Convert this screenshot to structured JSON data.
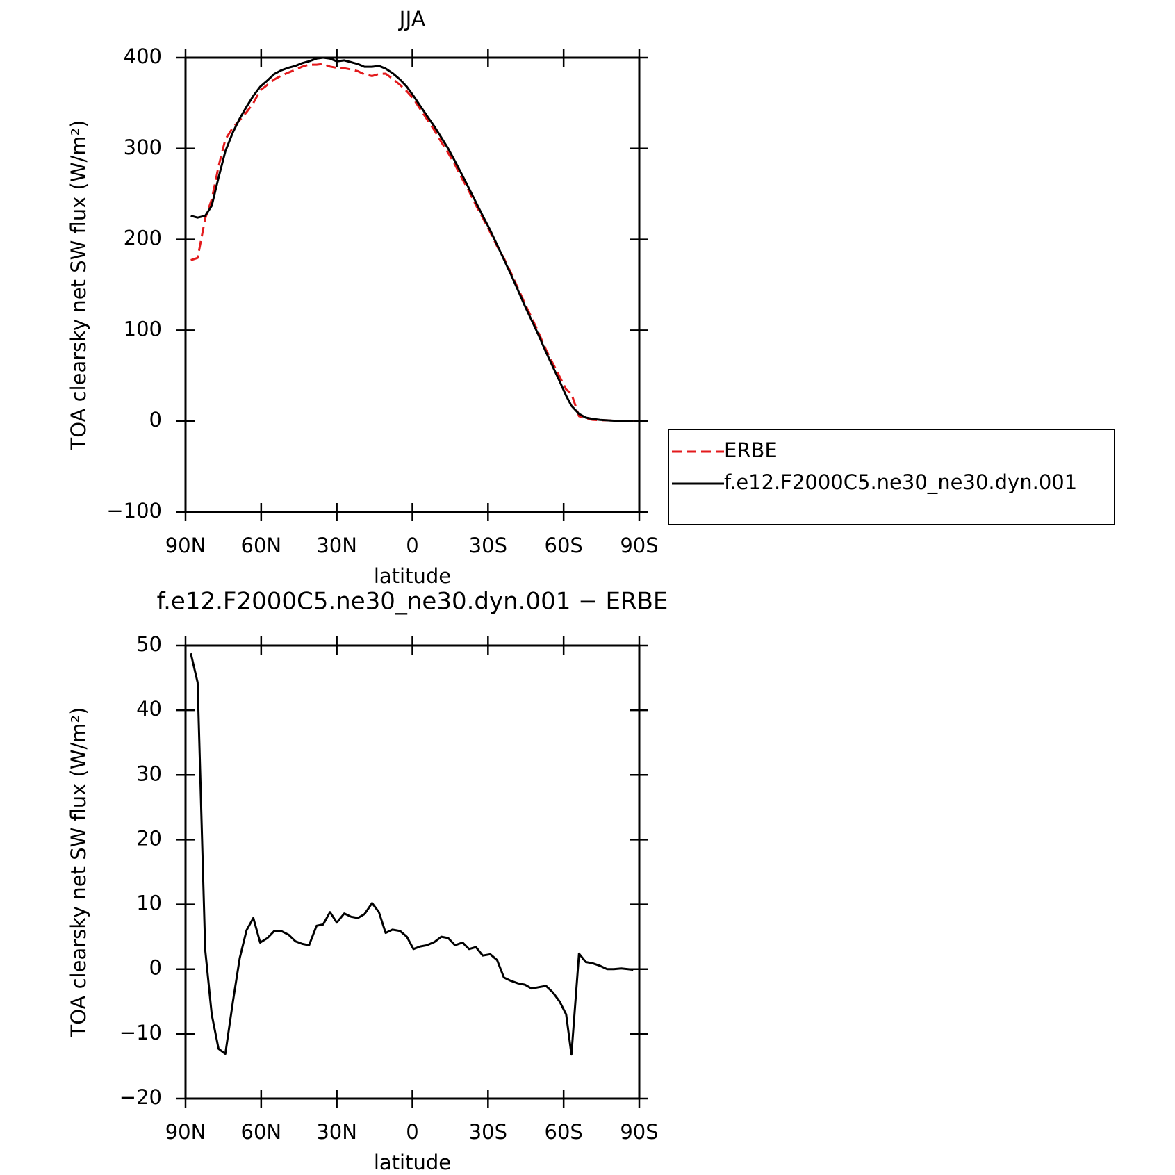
{
  "chart_data": [
    {
      "type": "line",
      "title": "JJA",
      "xlabel": "latitude",
      "ylabel": "TOA clearsky net SW flux (W/m²)",
      "x": [
        87.9,
        85.2,
        82.2,
        79.6,
        76.9,
        74.2,
        71.2,
        68.5,
        65.8,
        63.1,
        60.4,
        57.5,
        54.8,
        52.1,
        49.1,
        46.4,
        43.7,
        41,
        38,
        35.4,
        32.7,
        30,
        27,
        24.3,
        21.6,
        19,
        16,
        13.3,
        10.6,
        7.9,
        4.9,
        2.2,
        -0.4,
        -3.1,
        -5.8,
        -8.8,
        -11.5,
        -14.2,
        -16.9,
        -19.9,
        -22.5,
        -25.2,
        -27.9,
        -30.9,
        -33.6,
        -36.3,
        -39,
        -41.9,
        -44.6,
        -47.3,
        -50,
        -53,
        -55.7,
        -58.4,
        -61,
        -63.1,
        -66.1,
        -68.8,
        -71.5,
        -74.5,
        -77.2,
        -79.9,
        -82.8,
        -85.5,
        -87.6
      ],
      "series": [
        {
          "name": "ERBE",
          "color": "#e31a1c",
          "style": "dashed",
          "values": [
            177.2,
            179.7,
            223,
            244,
            280.3,
            310.1,
            323,
            331.3,
            340,
            350.1,
            363.9,
            370.2,
            376.1,
            380.1,
            383.7,
            386.7,
            390.1,
            392.3,
            392.3,
            393.1,
            390.2,
            388.8,
            388.4,
            386.9,
            385.1,
            381.5,
            379.8,
            382.2,
            382.4,
            376.9,
            370.1,
            363,
            354.9,
            343.5,
            332.3,
            319.8,
            307,
            295.2,
            282.3,
            265.9,
            252.9,
            237.6,
            223.9,
            207.7,
            192.6,
            179.3,
            163.8,
            146.2,
            129.4,
            114,
            97.8,
            78.6,
            63.6,
            49,
            35,
            30.2,
            5.6,
            2.9,
            1.6,
            1,
            1,
            0.5,
            0.2,
            0.2,
            0.3
          ]
        },
        {
          "name": "f.e12.F2000C5.ne30_ne30.dyn.001",
          "color": "#000000",
          "style": "solid",
          "values": [
            226,
            224,
            226,
            237,
            268,
            297,
            318,
            333,
            346,
            358,
            368,
            375,
            382,
            386,
            389,
            391,
            394,
            396,
            399,
            400,
            399,
            396,
            397,
            395,
            393,
            390,
            390,
            391,
            388,
            383,
            376,
            368,
            358,
            347,
            336,
            324,
            312,
            300,
            286,
            270,
            256,
            241,
            226,
            210,
            194,
            178,
            162,
            144,
            127,
            111,
            95,
            76,
            60,
            44,
            28,
            17,
            8,
            4,
            2.5,
            1.5,
            1,
            0.5,
            0.3,
            0.2,
            0.2
          ]
        }
      ],
      "xlim": [
        90,
        -90
      ],
      "xticks": [
        {
          "value": 90,
          "label": "90N"
        },
        {
          "value": 60,
          "label": "60N"
        },
        {
          "value": 30,
          "label": "30N"
        },
        0,
        {
          "value": -30,
          "label": "30S"
        },
        {
          "value": -60,
          "label": "60S"
        },
        {
          "value": -90,
          "label": "90S"
        }
      ],
      "ylim": [
        -100,
        400
      ],
      "yticks": [
        {
          "value": -100,
          "label": "−100"
        },
        0,
        100,
        200,
        300,
        400
      ],
      "legend": "right"
    },
    {
      "type": "line",
      "title": "f.e12.F2000C5.ne30_ne30.dyn.001 − ERBE",
      "xlabel": "latitude",
      "ylabel": "TOA clearsky net SW flux (W/m²)",
      "x": [
        87.9,
        85.2,
        82.2,
        79.6,
        76.9,
        74.2,
        71.2,
        68.5,
        65.8,
        63.1,
        60.4,
        57.5,
        54.8,
        52.1,
        49.1,
        46.4,
        43.7,
        41,
        38,
        35.4,
        32.7,
        30,
        27,
        24.3,
        21.6,
        19,
        16,
        13.3,
        10.6,
        7.9,
        4.9,
        2.2,
        -0.4,
        -3.1,
        -5.8,
        -8.8,
        -11.5,
        -14.2,
        -16.9,
        -19.9,
        -22.5,
        -25.2,
        -27.9,
        -30.9,
        -33.6,
        -36.3,
        -39,
        -41.9,
        -44.6,
        -47.3,
        -50,
        -53,
        -55.7,
        -58.4,
        -61,
        -63.1,
        -66.1,
        -68.8,
        -71.5,
        -74.5,
        -77.2,
        -79.9,
        -82.8,
        -85.5,
        -87.6
      ],
      "color": "#000000",
      "values": [
        48.8,
        44.3,
        3,
        -7,
        -12.3,
        -13.1,
        -5,
        1.7,
        6,
        7.9,
        4.1,
        4.8,
        5.9,
        5.9,
        5.3,
        4.3,
        3.9,
        3.7,
        6.7,
        6.9,
        8.8,
        7.2,
        8.6,
        8.1,
        7.9,
        8.5,
        10.2,
        8.8,
        5.6,
        6.1,
        5.9,
        5,
        3.1,
        3.5,
        3.7,
        4.2,
        5,
        4.8,
        3.7,
        4.1,
        3.1,
        3.4,
        2.1,
        2.3,
        1.4,
        -1.3,
        -1.8,
        -2.2,
        -2.4,
        -3,
        -2.8,
        -2.6,
        -3.6,
        -5,
        -7,
        -13.2,
        2.4,
        1.1,
        0.9,
        0.5,
        0,
        0,
        0.1,
        0,
        -0.1
      ],
      "xlim": [
        90,
        -90
      ],
      "xticks": [
        {
          "value": 90,
          "label": "90N"
        },
        {
          "value": 60,
          "label": "60N"
        },
        {
          "value": 30,
          "label": "30N"
        },
        0,
        {
          "value": -30,
          "label": "30S"
        },
        {
          "value": -60,
          "label": "60S"
        },
        {
          "value": -90,
          "label": "90S"
        }
      ],
      "ylim": [
        -20,
        50
      ],
      "yticks": [
        {
          "value": -20,
          "label": "−20"
        },
        {
          "value": -10,
          "label": "−10"
        },
        0,
        10,
        20,
        30,
        40,
        50
      ]
    }
  ]
}
